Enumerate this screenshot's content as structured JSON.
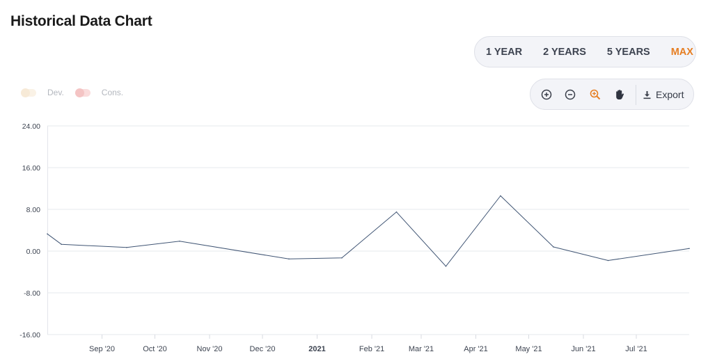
{
  "header": {
    "title": "Historical Data Chart"
  },
  "range_buttons": [
    {
      "label": "1 YEAR",
      "active": false
    },
    {
      "label": "2 YEARS",
      "active": false
    },
    {
      "label": "5 YEARS",
      "active": false
    },
    {
      "label": "MAX",
      "active": true
    }
  ],
  "legend": [
    {
      "label": "Dev.",
      "color": "#f7ead7",
      "enabled": false
    },
    {
      "label": "Cons.",
      "color": "#f4c4c4",
      "enabled": false
    }
  ],
  "toolbar": {
    "tools": [
      {
        "name": "zoom-in-icon",
        "active": false
      },
      {
        "name": "zoom-out-icon",
        "active": false
      },
      {
        "name": "selection-zoom-icon",
        "active": true
      },
      {
        "name": "pan-hand-icon",
        "active": false
      }
    ],
    "export_label": "Export",
    "accent": "#e67e22"
  },
  "chart_data": {
    "type": "line",
    "title": "",
    "xlabel": "",
    "ylabel": "",
    "ylim": [
      -16,
      24
    ],
    "yticks": [
      "24.00",
      "16.00",
      "8.00",
      "0.00",
      "-8.00",
      "-16.00"
    ],
    "xlim": [
      "2020-08-01",
      "2021-07-31"
    ],
    "xticks": [
      {
        "date": "2020-09-01",
        "label": "Sep '20",
        "bold": false
      },
      {
        "date": "2020-10-01",
        "label": "Oct '20",
        "bold": false
      },
      {
        "date": "2020-11-01",
        "label": "Nov '20",
        "bold": false
      },
      {
        "date": "2020-12-01",
        "label": "Dec '20",
        "bold": false
      },
      {
        "date": "2021-01-01",
        "label": "2021",
        "bold": true
      },
      {
        "date": "2021-02-01",
        "label": "Feb '21",
        "bold": false
      },
      {
        "date": "2021-03-01",
        "label": "Mar '21",
        "bold": false
      },
      {
        "date": "2021-04-01",
        "label": "Apr '21",
        "bold": false
      },
      {
        "date": "2021-05-01",
        "label": "May '21",
        "bold": false
      },
      {
        "date": "2021-06-01",
        "label": "Jun '21",
        "bold": false
      },
      {
        "date": "2021-07-01",
        "label": "Jul '21",
        "bold": false
      }
    ],
    "grid": true,
    "line_color": "#3f5473",
    "series": [
      {
        "points": [
          {
            "x": "2020-08-01",
            "y": 3.3
          },
          {
            "x": "2020-08-09",
            "y": 1.3
          },
          {
            "x": "2020-09-15",
            "y": 0.7
          },
          {
            "x": "2020-10-15",
            "y": 1.9
          },
          {
            "x": "2020-12-16",
            "y": -1.5
          },
          {
            "x": "2021-01-15",
            "y": -1.3
          },
          {
            "x": "2021-02-15",
            "y": 7.5
          },
          {
            "x": "2021-03-15",
            "y": -2.9
          },
          {
            "x": "2021-04-15",
            "y": 10.6
          },
          {
            "x": "2021-05-15",
            "y": 0.8
          },
          {
            "x": "2021-06-15",
            "y": -1.8
          },
          {
            "x": "2021-07-31",
            "y": 0.5
          }
        ]
      }
    ]
  }
}
